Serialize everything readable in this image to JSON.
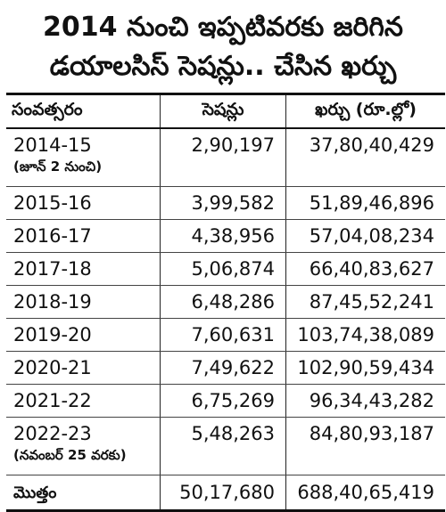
{
  "title_line1": "2014 నుంచి ఇప్పటివరకు జరిగిన",
  "title_line2": "డయాలసిస్ సెషన్లు.. చేసిన ఖర్చు",
  "table": {
    "headers": [
      "సంవత్సరం",
      "సెషన్లు",
      "ఖర్చు (రూ.ల్లో)"
    ],
    "rows": [
      {
        "year": "2014-15",
        "note": "(జూన్ 2 నుంచి)",
        "sessions": "2,90,197",
        "cost": "37,80,40,429"
      },
      {
        "year": "2015-16",
        "sessions": "3,99,582",
        "cost": "51,89,46,896"
      },
      {
        "year": "2016-17",
        "sessions": "4,38,956",
        "cost": "57,04,08,234"
      },
      {
        "year": "2017-18",
        "sessions": "5,06,874",
        "cost": "66,40,83,627"
      },
      {
        "year": "2018-19",
        "sessions": "6,48,286",
        "cost": "87,45,52,241"
      },
      {
        "year": "2019-20",
        "sessions": "7,60,631",
        "cost": "103,74,38,089"
      },
      {
        "year": "2020-21",
        "sessions": "7,49,622",
        "cost": "102,90,59,434"
      },
      {
        "year": "2021-22",
        "sessions": "6,75,269",
        "cost": "96,34,43,282"
      },
      {
        "year": "2022-23",
        "note": "(నవంబర్ 25 వరకు)",
        "sessions": "5,48,263",
        "cost": "84,80,93,187"
      }
    ],
    "total": {
      "label": "మొత్తం",
      "sessions": "50,17,680",
      "cost": "688,40,65,419"
    }
  }
}
